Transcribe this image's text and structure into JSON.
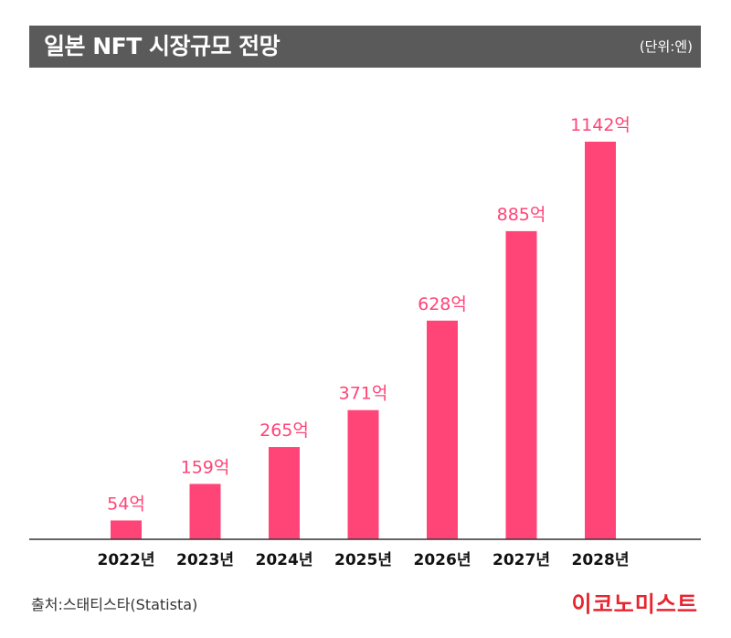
{
  "header": {
    "title": "일본 NFT 시장규모 전망",
    "unit": "(단위:엔)"
  },
  "footer": {
    "source": "출처:스태티스타(Statista)",
    "brand": "이코노미스트"
  },
  "colors": {
    "bar": "#ff4477",
    "label": "#ff4477",
    "title_bg": "#5a5a5a",
    "brand": "#e8252f",
    "axis": "#333333"
  },
  "chart_data": {
    "type": "bar",
    "categories": [
      "2022년",
      "2023년",
      "2024년",
      "2025년",
      "2026년",
      "2027년",
      "2028년"
    ],
    "values": [
      54,
      159,
      265,
      371,
      628,
      885,
      1142
    ],
    "data_labels": [
      "54억",
      "159억",
      "265억",
      "371억",
      "628억",
      "885억",
      "1142억"
    ],
    "ylim": [
      0,
      1142
    ],
    "grid": false,
    "legend": "none"
  }
}
